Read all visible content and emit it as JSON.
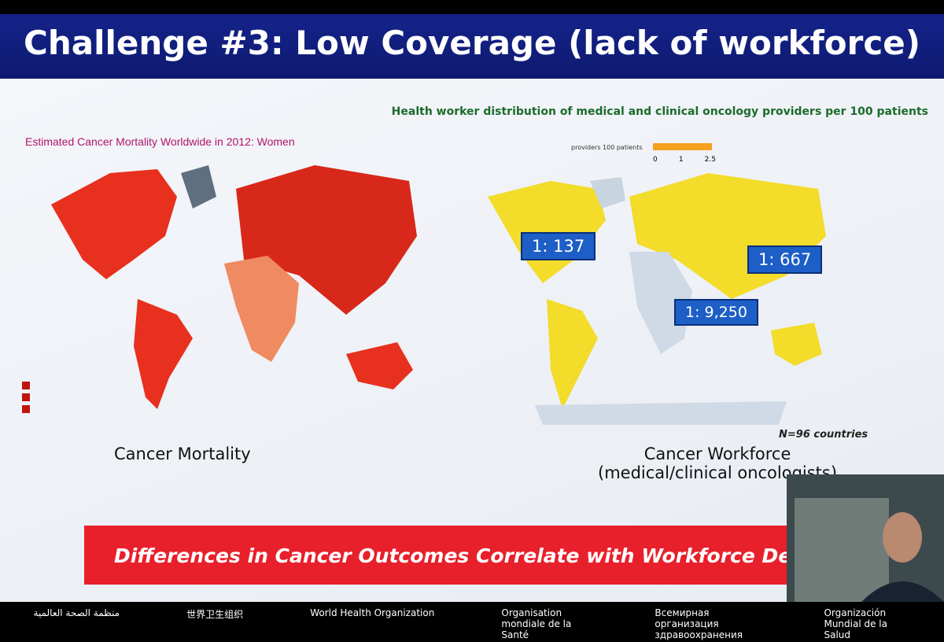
{
  "header": {
    "title": "Challenge #3: Low Coverage (lack of workforce)"
  },
  "subtitle": "Health worker distribution of medical and clinical oncology providers per 100 patients",
  "left_map": {
    "title": "Estimated Cancer Mortality Worldwide in 2012: Women",
    "caption": "Cancer Mortality"
  },
  "right_map": {
    "legend_title": "providers 100 patients",
    "legend_ticks": [
      "0",
      "1",
      "2.5"
    ],
    "ratios": [
      "1: 137",
      "1: 667",
      "1: 9,250"
    ],
    "note": "N=96 countries",
    "caption": [
      "Cancer Workforce",
      "(medical/clinical oncologists)"
    ]
  },
  "banner": "Differences in Cancer Outcomes Correlate with Workforce Density",
  "footer": [
    "منظمة الصحة العالمية",
    "世界卫生组织",
    "World Health Organization",
    "Organisation mondiale de la Santé",
    "Всемирная организация здравоохранения",
    "Organización Mundial de la Salud"
  ]
}
